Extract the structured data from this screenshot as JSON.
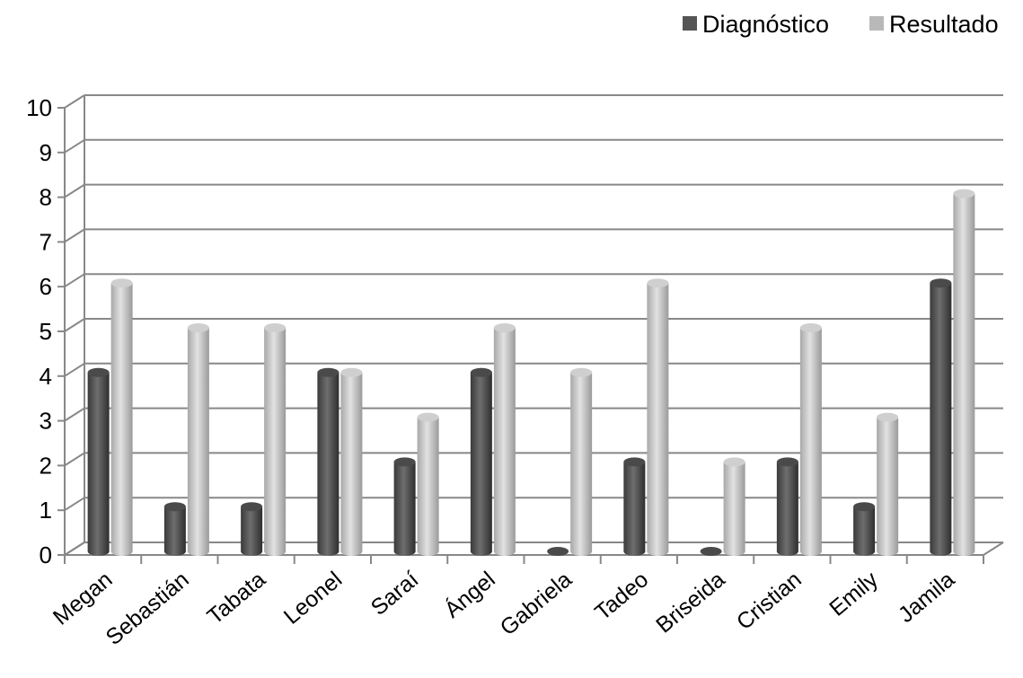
{
  "chart_data": {
    "type": "bar",
    "categories": [
      "Megan",
      "Sebastián",
      "Tabata",
      "Leonel",
      "Saraí",
      "Ángel",
      "Gabriela",
      "Tadeo",
      "Briseida",
      "Cristian",
      "Emily",
      "Jamila"
    ],
    "series": [
      {
        "name": "Diagnóstico",
        "values": [
          4,
          1,
          1,
          4,
          2,
          4,
          0,
          2,
          0,
          2,
          1,
          6
        ],
        "color": "#555555"
      },
      {
        "name": "Resultado",
        "values": [
          6,
          5,
          5,
          4,
          3,
          5,
          4,
          6,
          2,
          5,
          3,
          8
        ],
        "color": "#b9b9b9"
      }
    ],
    "ylim": [
      0,
      10
    ],
    "yticks": [
      "0",
      "1",
      "2",
      "3",
      "4",
      "5",
      "6",
      "7",
      "8",
      "9",
      "10"
    ],
    "grid": true,
    "legend_position": "top-right",
    "style": "3d-cylinder"
  }
}
